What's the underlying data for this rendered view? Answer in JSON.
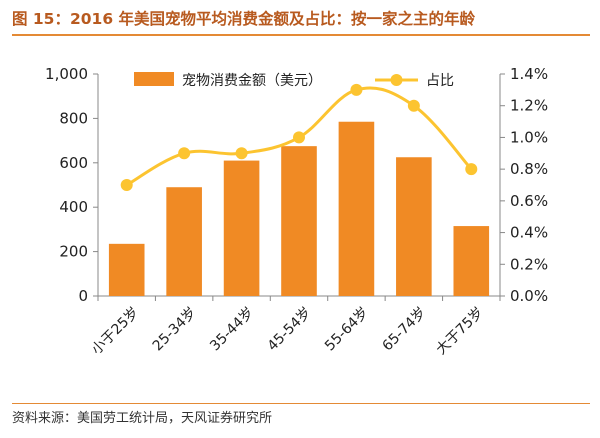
{
  "figure": {
    "title": "图 15：2016 年美国宠物平均消费金额及占比：按一家之主的年龄",
    "source": "资料来源：美国劳工统计局，天风证券研究所"
  },
  "chart_data": {
    "type": "bar",
    "categories": [
      "小于25岁",
      "25-34岁",
      "35-44岁",
      "45-54岁",
      "55-64岁",
      "65-74岁",
      "大于75岁"
    ],
    "series": [
      {
        "name": "宠物消费金额（美元）",
        "type": "bar",
        "axis": "left",
        "values": [
          235,
          490,
          610,
          675,
          785,
          625,
          315
        ],
        "color": "#f08a24"
      },
      {
        "name": "占比",
        "type": "line",
        "axis": "right",
        "values": [
          0.7,
          0.9,
          0.9,
          1.0,
          1.3,
          1.2,
          0.8
        ],
        "color": "#fcc430"
      }
    ],
    "y_left": {
      "ylim": [
        0,
        1000
      ],
      "ticks": [
        0,
        200,
        400,
        600,
        800,
        1000
      ],
      "tick_labels": [
        "0",
        "200",
        "400",
        "600",
        "800",
        "1,000"
      ]
    },
    "y_right": {
      "ylim": [
        0,
        1.4
      ],
      "ticks": [
        0,
        0.2,
        0.4,
        0.6,
        0.8,
        1.0,
        1.2,
        1.4
      ],
      "tick_labels": [
        "0.0%",
        "0.2%",
        "0.4%",
        "0.6%",
        "0.8%",
        "1.0%",
        "1.2%",
        "1.4%"
      ]
    },
    "legend": {
      "placement": "top-center"
    },
    "grid": false
  }
}
